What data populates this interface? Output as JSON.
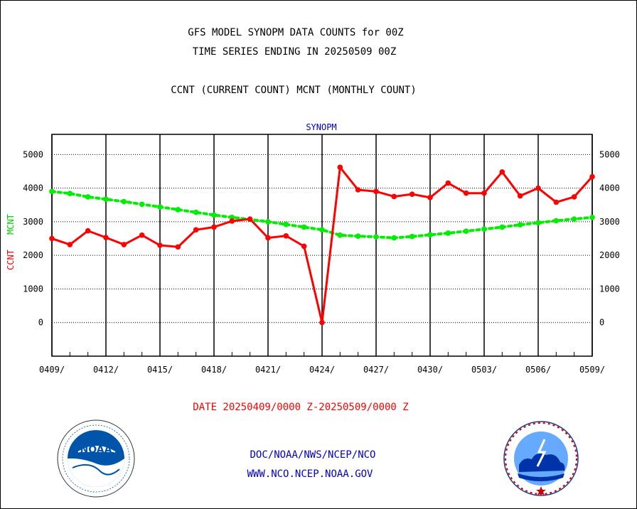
{
  "header": {
    "title_line1": "GFS MODEL SYNOPM DATA COUNTS for 00Z",
    "title_line2": "TIME SERIES ENDING IN 20250509 00Z",
    "subtitle": "CCNT (CURRENT COUNT) MCNT (MONTHLY COUNT)"
  },
  "footer": {
    "date_range": "DATE 20250409/0000 Z-20250509/0000 Z",
    "org": "DOC/NOAA/NWS/NCEP/NCO",
    "url": "WWW.NCO.NCEP.NOAA.GOV"
  },
  "logos": {
    "left": {
      "icon": "noaa-logo-icon",
      "text": "NOAA",
      "color": "#0055aa"
    },
    "right": {
      "icon": "national-weather-service-logo-icon",
      "color": "#0044aa"
    }
  },
  "chart_data": {
    "type": "line",
    "title": "SYNOPM",
    "ylabel_ccnt": "CCNT",
    "ylabel_mcnt": "MCNT",
    "ylim": [
      -1000,
      5600
    ],
    "yticks": [
      0,
      1000,
      2000,
      3000,
      4000,
      5000
    ],
    "x_ticks": [
      "0409/",
      "0412/",
      "0415/",
      "0418/",
      "0421/",
      "0424/",
      "0427/",
      "0430/",
      "0503/",
      "0506/",
      "0509/"
    ],
    "x": [
      "0409",
      "0410",
      "0411",
      "0412",
      "0413",
      "0414",
      "0415",
      "0416",
      "0417",
      "0418",
      "0419",
      "0420",
      "0421",
      "0422",
      "0423",
      "0424",
      "0425",
      "0426",
      "0427",
      "0428",
      "0429",
      "0430",
      "0501",
      "0502",
      "0503",
      "0504",
      "0505",
      "0506",
      "0507",
      "0508",
      "0509"
    ],
    "grid": true,
    "series": [
      {
        "name": "CCNT",
        "color": "#ff0000",
        "style": "solid",
        "values": [
          2500,
          2320,
          2730,
          2530,
          2320,
          2600,
          2300,
          2250,
          2760,
          2840,
          3020,
          3080,
          2520,
          2580,
          2270,
          0,
          4620,
          3950,
          3900,
          3750,
          3820,
          3720,
          4150,
          3850,
          3850,
          4480,
          3770,
          4000,
          3580,
          3740,
          4340
        ]
      },
      {
        "name": "MCNT",
        "color": "#00ee00",
        "style": "dotted",
        "values": [
          3900,
          3840,
          3740,
          3670,
          3600,
          3520,
          3440,
          3360,
          3280,
          3200,
          3130,
          3070,
          3000,
          2920,
          2840,
          2760,
          2600,
          2570,
          2550,
          2520,
          2560,
          2610,
          2660,
          2720,
          2780,
          2840,
          2910,
          2970,
          3030,
          3080,
          3130
        ]
      }
    ]
  }
}
